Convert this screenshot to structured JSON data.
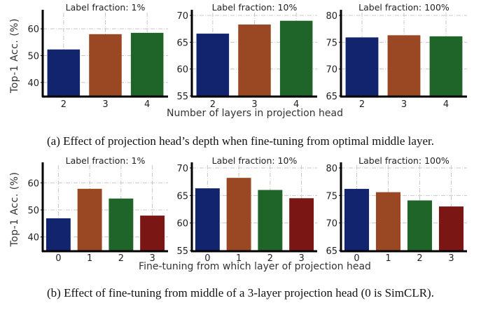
{
  "colors": [
    "#13246e",
    "#9a4824",
    "#1f6428",
    "#7a1714"
  ],
  "rows": [
    {
      "ylabel": "Top-1 Acc. (%)",
      "xlabel": "Number of layers in projection head",
      "caption": "(a)  Effect of projection head’s depth when fine-tuning from optimal middle layer."
    },
    {
      "ylabel": "Top-1 Acc. (%)",
      "xlabel": "Fine-tuning from which layer of projection head",
      "caption": "(b) Effect of fine-tuning from middle of a 3-layer projection head (0 is SimCLR)."
    }
  ],
  "chart_data": [
    {
      "type": "bar",
      "row": 0,
      "title": "Label fraction: 1%",
      "categories": [
        "2",
        "3",
        "4"
      ],
      "values": [
        52.3,
        58.0,
        58.5
      ],
      "ylim": [
        35,
        65
      ],
      "yticks": [
        40,
        50,
        60
      ],
      "grid": true
    },
    {
      "type": "bar",
      "row": 0,
      "title": "Label fraction: 10%",
      "categories": [
        "2",
        "3",
        "4"
      ],
      "values": [
        66.6,
        68.3,
        69.0
      ],
      "ylim": [
        55,
        70
      ],
      "yticks": [
        55,
        60,
        65,
        70
      ],
      "grid": true
    },
    {
      "type": "bar",
      "row": 0,
      "title": "Label fraction: 100%",
      "categories": [
        "2",
        "3",
        "4"
      ],
      "values": [
        75.9,
        76.3,
        76.1
      ],
      "ylim": [
        65,
        80
      ],
      "yticks": [
        65,
        70,
        75,
        80
      ],
      "grid": true
    },
    {
      "type": "bar",
      "row": 1,
      "title": "Label fraction: 1%",
      "categories": [
        "0",
        "1",
        "2",
        "3"
      ],
      "values": [
        46.9,
        57.8,
        54.2,
        47.9
      ],
      "ylim": [
        35,
        65.5
      ],
      "yticks": [
        40,
        50,
        60
      ],
      "grid": true
    },
    {
      "type": "bar",
      "row": 1,
      "title": "Label fraction: 10%",
      "categories": [
        "0",
        "1",
        "2",
        "3"
      ],
      "values": [
        66.3,
        68.2,
        66.0,
        64.5
      ],
      "ylim": [
        55,
        70
      ],
      "yticks": [
        55,
        60,
        65,
        70
      ],
      "grid": true
    },
    {
      "type": "bar",
      "row": 1,
      "title": "Label fraction: 100%",
      "categories": [
        "0",
        "1",
        "2",
        "3"
      ],
      "values": [
        76.2,
        75.6,
        74.1,
        73.0
      ],
      "ylim": [
        65,
        80
      ],
      "yticks": [
        65,
        70,
        75,
        80
      ],
      "grid": true
    }
  ]
}
